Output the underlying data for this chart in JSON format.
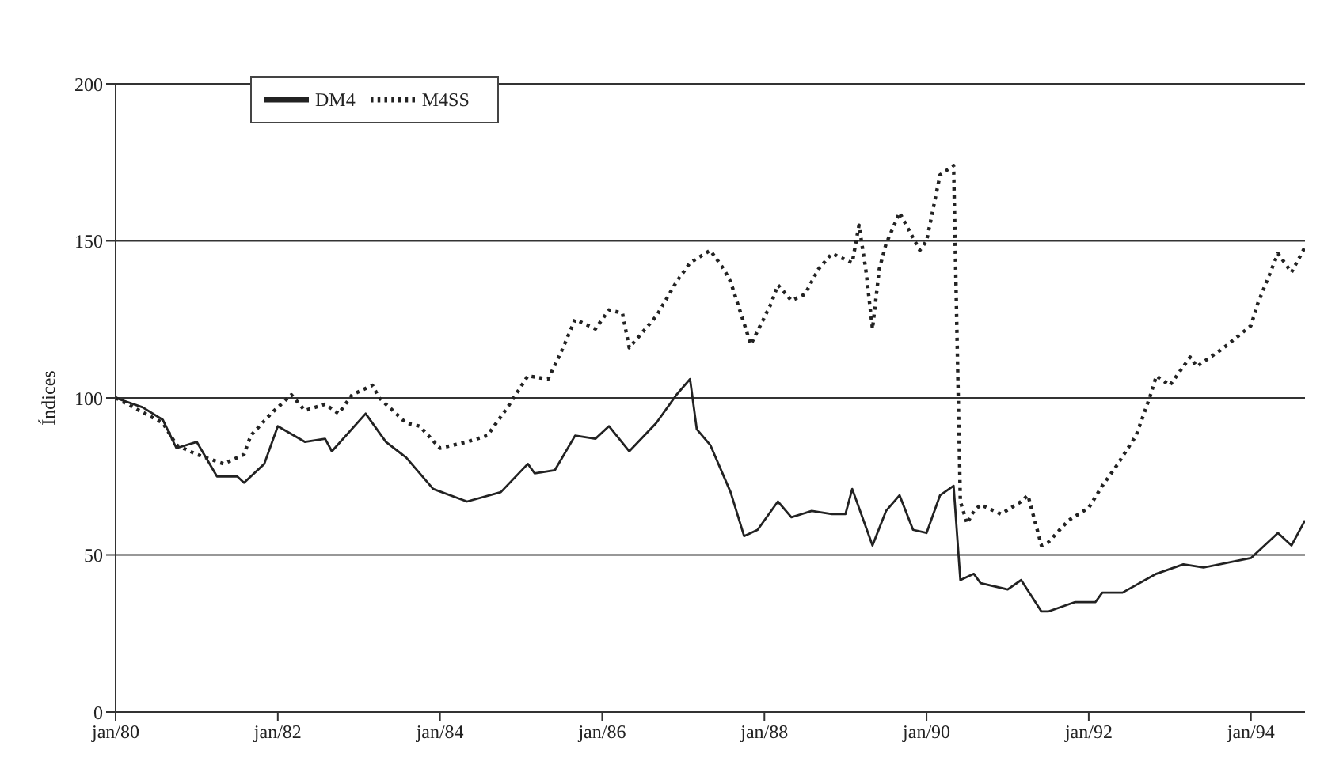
{
  "chart_data": {
    "type": "line",
    "ylabel": "Índices",
    "xlim": [
      "1980-01",
      "1994-09"
    ],
    "xticks": [
      {
        "value": "1980-01",
        "label": "jan/80"
      },
      {
        "value": "1982-01",
        "label": "jan/82"
      },
      {
        "value": "1984-01",
        "label": "jan/84"
      },
      {
        "value": "1986-01",
        "label": "jan/86"
      },
      {
        "value": "1988-01",
        "label": "jan/88"
      },
      {
        "value": "1990-01",
        "label": "jan/90"
      },
      {
        "value": "1992-01",
        "label": "jan/92"
      },
      {
        "value": "1994-01",
        "label": "jan/94"
      }
    ],
    "ylim": [
      0,
      200
    ],
    "yticks": [
      0,
      50,
      100,
      150,
      200
    ],
    "grid": "y",
    "legend": "top left",
    "marker": "none",
    "series": [
      {
        "name": "DM4",
        "color": "#222222",
        "line_style": "solid",
        "x": [
          "1980-01",
          "1980-05",
          "1980-08",
          "1980-10",
          "1981-01",
          "1981-04",
          "1981-07",
          "1981-08",
          "1981-11",
          "1982-01",
          "1982-05",
          "1982-08",
          "1982-09",
          "1983-02",
          "1983-05",
          "1983-08",
          "1983-12",
          "1984-05",
          "1984-10",
          "1985-02",
          "1985-03",
          "1985-06",
          "1985-09",
          "1985-12",
          "1986-02",
          "1986-05",
          "1986-09",
          "1986-12",
          "1987-02",
          "1987-03",
          "1987-05",
          "1987-08",
          "1987-10",
          "1987-12",
          "1988-03",
          "1988-05",
          "1988-08",
          "1988-11",
          "1989-01",
          "1989-02",
          "1989-05",
          "1989-07",
          "1989-09",
          "1989-11",
          "1990-01",
          "1990-03",
          "1990-05",
          "1990-06",
          "1990-08",
          "1990-09",
          "1991-01",
          "1991-03",
          "1991-06",
          "1991-07",
          "1991-11",
          "1992-02",
          "1992-03",
          "1992-06",
          "1992-11",
          "1993-03",
          "1993-06",
          "1994-01",
          "1994-05",
          "1994-07",
          "1994-09"
        ],
        "values": [
          100,
          97,
          93,
          84,
          86,
          75,
          75,
          73,
          79,
          91,
          86,
          87,
          83,
          95,
          86,
          81,
          71,
          67,
          70,
          79,
          76,
          77,
          88,
          87,
          91,
          83,
          92,
          101,
          106,
          90,
          85,
          70,
          56,
          58,
          67,
          62,
          64,
          63,
          63,
          71,
          53,
          64,
          69,
          58,
          57,
          69,
          72,
          42,
          44,
          41,
          39,
          42,
          32,
          32,
          35,
          35,
          38,
          38,
          44,
          47,
          46,
          49,
          57,
          53,
          61
        ]
      },
      {
        "name": "M4SS",
        "color": "#222222",
        "line_style": "dotted",
        "x": [
          "1980-01",
          "1980-08",
          "1980-10",
          "1981-01",
          "1981-05",
          "1981-08",
          "1981-09",
          "1981-12",
          "1982-03",
          "1982-05",
          "1982-08",
          "1982-10",
          "1982-12",
          "1983-03",
          "1983-04",
          "1983-08",
          "1983-10",
          "1984-01",
          "1984-05",
          "1984-08",
          "1984-11",
          "1985-02",
          "1985-05",
          "1985-07",
          "1985-09",
          "1985-12",
          "1986-02",
          "1986-04",
          "1986-05",
          "1986-09",
          "1986-12",
          "1987-02",
          "1987-05",
          "1987-07",
          "1987-08",
          "1987-11",
          "1988-02",
          "1988-03",
          "1988-05",
          "1988-07",
          "1988-09",
          "1988-11",
          "1989-02",
          "1989-03",
          "1989-04",
          "1989-05",
          "1989-06",
          "1989-07",
          "1989-09",
          "1989-12",
          "1990-01",
          "1990-03",
          "1990-05",
          "1990-06",
          "1990-07",
          "1990-08",
          "1990-09",
          "1990-12",
          "1991-03",
          "1991-04",
          "1991-06",
          "1991-07",
          "1991-10",
          "1992-01",
          "1992-03",
          "1992-05",
          "1992-08",
          "1992-10",
          "1992-11",
          "1993-01",
          "1993-04",
          "1993-05",
          "1993-09",
          "1994-01",
          "1994-02",
          "1994-05",
          "1994-07",
          "1994-09"
        ],
        "values": [
          100,
          92,
          85,
          82,
          79,
          82,
          88,
          95,
          101,
          96,
          98,
          95,
          101,
          104,
          100,
          92,
          91,
          84,
          86,
          88,
          97,
          107,
          106,
          115,
          125,
          122,
          128,
          127,
          116,
          126,
          137,
          143,
          147,
          141,
          137,
          117,
          130,
          136,
          131,
          133,
          141,
          146,
          143,
          155,
          141,
          122,
          141,
          149,
          159,
          147,
          150,
          171,
          174,
          67,
          60,
          64,
          66,
          63,
          67,
          69,
          53,
          54,
          61,
          65,
          72,
          78,
          88,
          100,
          107,
          104,
          113,
          110,
          116,
          123,
          130,
          146,
          140,
          148
        ]
      }
    ]
  }
}
